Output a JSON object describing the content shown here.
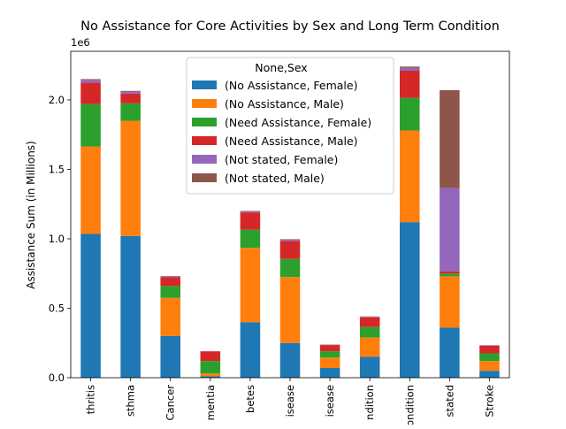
{
  "chart_data": {
    "type": "bar",
    "stacked": true,
    "title": "No Assistance for Core Activities by Sex and Long Term Condition",
    "xlabel": "",
    "ylabel": "Assistance Sum (in Millions)",
    "y_offset_label": "1e6",
    "ylim": [
      0,
      2.35
    ],
    "yticks": [
      0.0,
      0.5,
      1.0,
      1.5,
      2.0
    ],
    "ytick_labels": [
      "0.0",
      "0.5",
      "1.0",
      "1.5",
      "2.0"
    ],
    "categories": [
      "thritis",
      "sthma",
      "Cancer",
      "mentia",
      "betes",
      "isease",
      "isease",
      "ndition",
      "ondition",
      "stated",
      "Stroke"
    ],
    "legend": {
      "title": "None,Sex",
      "position": "upper center"
    },
    "series": [
      {
        "name": "(No Assistance, Female)",
        "color": "#1f77b4",
        "values": [
          1.035,
          1.02,
          0.3,
          0.01,
          0.4,
          0.25,
          0.07,
          0.15,
          1.12,
          0.36,
          0.05
        ]
      },
      {
        "name": "(No Assistance, Male)",
        "color": "#ff7f0e",
        "values": [
          0.63,
          0.83,
          0.275,
          0.02,
          0.535,
          0.475,
          0.075,
          0.14,
          0.66,
          0.37,
          0.07
        ]
      },
      {
        "name": "(Need Assistance, Female)",
        "color": "#2ca02c",
        "values": [
          0.305,
          0.125,
          0.085,
          0.09,
          0.13,
          0.13,
          0.045,
          0.075,
          0.235,
          0.02,
          0.055
        ]
      },
      {
        "name": "(Need Assistance, Male)",
        "color": "#d62728",
        "values": [
          0.155,
          0.07,
          0.065,
          0.07,
          0.125,
          0.13,
          0.045,
          0.07,
          0.195,
          0.015,
          0.055
        ]
      },
      {
        "name": "(Not stated, Female)",
        "color": "#9467bd",
        "values": [
          0.02,
          0.015,
          0.005,
          0.0,
          0.008,
          0.008,
          0.003,
          0.004,
          0.02,
          0.6,
          0.003
        ]
      },
      {
        "name": "(Not stated, Male)",
        "color": "#8c564b",
        "values": [
          0.005,
          0.005,
          0.002,
          0.0,
          0.003,
          0.004,
          0.001,
          0.002,
          0.01,
          0.705,
          0.001
        ]
      }
    ]
  }
}
